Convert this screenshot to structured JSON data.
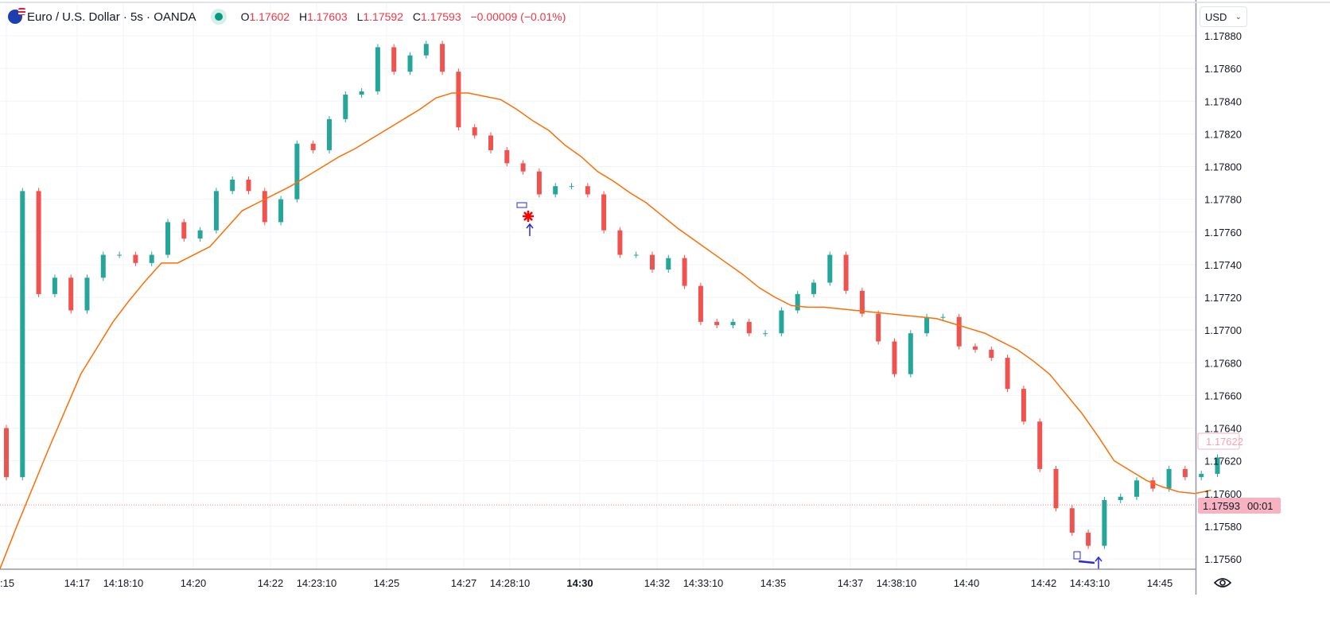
{
  "header": {
    "symbol_title": "Euro / U.S. Dollar · 5s · OANDA",
    "open_label": "O",
    "open": "1.17602",
    "high_label": "H",
    "high": "1.17603",
    "low_label": "L",
    "low": "1.17592",
    "close_label": "C",
    "close": "1.17593",
    "change": "−0.00009 (−0.01%)",
    "market_status": "open"
  },
  "currency_button": {
    "label": "USD",
    "icon": "chevron-down-icon"
  },
  "settings_icon": "eye-icon",
  "colors": {
    "up": "#26a69a",
    "down": "#ef5350",
    "ma": "#ff6d00",
    "last_price": "#f7b3c2",
    "annotation": "#2a2ad6",
    "marker": "#ff0000"
  },
  "chart_data": {
    "type": "candlestick",
    "symbol": "EURUSD",
    "interval": "5s",
    "ylim": [
      1.17545,
      1.17885
    ],
    "y_ticks": [
      "1.17560",
      "1.17580",
      "1.17600",
      "1.17620",
      "1.17640",
      "1.17660",
      "1.17680",
      "1.17700",
      "1.17720",
      "1.17740",
      "1.17760",
      "1.17780",
      "1.17800",
      "1.17820",
      "1.17840",
      "1.17860",
      "1.17880"
    ],
    "x_ticks": [
      ":15",
      "14:17",
      "14:18:10",
      "14:20",
      "14:22",
      "14:23:10",
      "14:25",
      "14:27",
      "14:28:10",
      "14:30",
      "14:32",
      "14:33:10",
      "14:35",
      "14:37",
      "14:38:10",
      "14:40",
      "14:42",
      "14:43:10",
      "14:45"
    ],
    "x_ticks_bold": [
      "14:30"
    ],
    "sample_start": "14:15:00",
    "sample_step_seconds": 25,
    "closes": [
      1.1761,
      1.17785,
      1.17722,
      1.17732,
      1.17712,
      1.17732,
      1.17746,
      1.17746,
      1.17741,
      1.17746,
      1.17766,
      1.17756,
      1.17761,
      1.17785,
      1.17792,
      1.17785,
      1.17766,
      1.1778,
      1.17814,
      1.1781,
      1.17829,
      1.17844,
      1.17846,
      1.17873,
      1.17858,
      1.17868,
      1.17875,
      1.17858,
      1.17824,
      1.17819,
      1.1781,
      1.17802,
      1.17797,
      1.17783,
      1.17788,
      1.17788,
      1.17783,
      1.17761,
      1.17746,
      1.17746,
      1.17737,
      1.17744,
      1.17727,
      1.17705,
      1.17703,
      1.17705,
      1.17698,
      1.17698,
      1.17712,
      1.17722,
      1.17729,
      1.17746,
      1.17724,
      1.1771,
      1.17693,
      1.17673,
      1.17698,
      1.17708,
      1.17708,
      1.1769,
      1.17688,
      1.17683,
      1.17664,
      1.17644,
      1.17615,
      1.17591,
      1.17576,
      1.17568,
      1.17596,
      1.17598,
      1.17608,
      1.17603,
      1.17615,
      1.1761,
      1.17612,
      1.17622
    ],
    "moving_average": [
      1.17554,
      1.17579,
      1.17603,
      1.17627,
      1.1765,
      1.17673,
      1.17689,
      1.17705,
      1.17718,
      1.1773,
      1.17741,
      1.17741,
      1.17746,
      1.17751,
      1.17762,
      1.17773,
      1.17778,
      1.17783,
      1.17788,
      1.17794,
      1.178,
      1.17806,
      1.17811,
      1.17817,
      1.17823,
      1.17829,
      1.17835,
      1.17842,
      1.17845,
      1.17845,
      1.17843,
      1.17841,
      1.17835,
      1.17828,
      1.17822,
      1.17813,
      1.17806,
      1.17797,
      1.17791,
      1.17784,
      1.17778,
      1.1777,
      1.17762,
      1.17755,
      1.17748,
      1.17741,
      1.17734,
      1.17726,
      1.1772,
      1.17715,
      1.17714,
      1.17714,
      1.17713,
      1.17712,
      1.17711,
      1.1771,
      1.17709,
      1.17708,
      1.17707,
      1.17704,
      1.17701,
      1.17698,
      1.17693,
      1.17688,
      1.17681,
      1.17673,
      1.17661,
      1.17649,
      1.17635,
      1.1762,
      1.17614,
      1.17608,
      1.17604,
      1.17601,
      1.176,
      1.17602
    ],
    "last_price_line": 1.17593,
    "price_labels": {
      "prev_close": "1.17622",
      "last": "1.17593",
      "countdown": "00:01"
    }
  }
}
